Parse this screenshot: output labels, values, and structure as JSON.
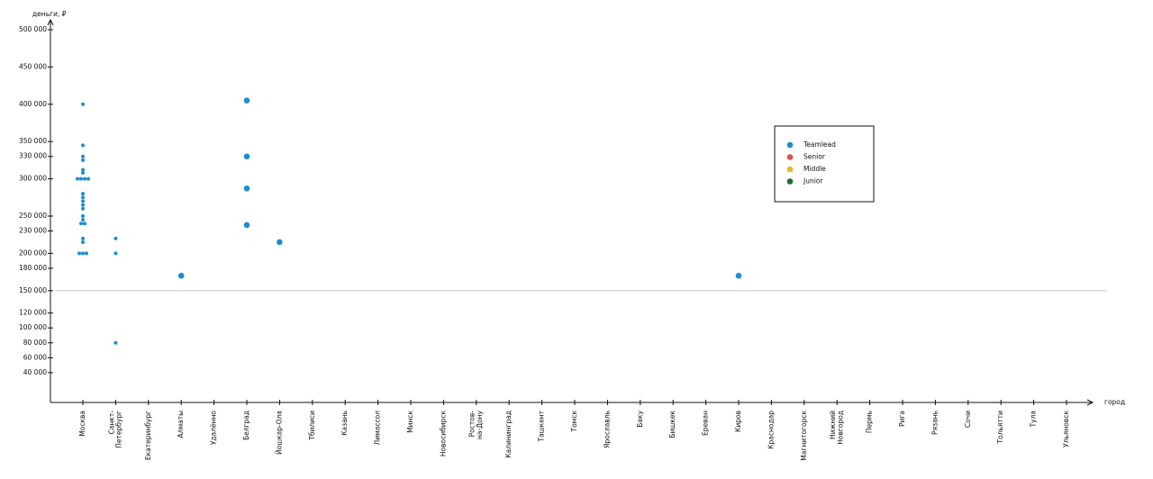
{
  "chart_data": {
    "type": "scatter",
    "y_label": "деньги, ₽",
    "x_label": "город",
    "categories": [
      "Москва",
      "Санкт-\nПетербург",
      "Екатеринбург",
      "Алматы",
      "Удалённо",
      "Белград",
      "Йошкар-Ола",
      "Тбилиси",
      "Казань",
      "Лимассол",
      "Минск",
      "Новосибирск",
      "Ростов-\nна-Дону",
      "Калининград",
      "Ташкент",
      "Томск",
      "Ярославль",
      "Баку",
      "Бишкек",
      "Ереван",
      "Киров",
      "Краснодар",
      "Магнитогорск",
      "Нижний\nНовгород",
      "Пермь",
      "Рига",
      "Рязань",
      "Сочи",
      "Тольятти",
      "Тула",
      "Ульяновск"
    ],
    "ylim": [
      0,
      510000
    ],
    "yticks": [
      {
        "value": 40000,
        "label": "40 000"
      },
      {
        "value": 60000,
        "label": "60 000"
      },
      {
        "value": 80000,
        "label": "80 000"
      },
      {
        "value": 100000,
        "label": "100 000"
      },
      {
        "value": 120000,
        "label": "120 000"
      },
      {
        "value": 150000,
        "label": "150 000"
      },
      {
        "value": 180000,
        "label": "180 000"
      },
      {
        "value": 200000,
        "label": "200 000"
      },
      {
        "value": 230000,
        "label": "230 000"
      },
      {
        "value": 250000,
        "label": "250 000"
      },
      {
        "value": 300000,
        "label": "300 000"
      },
      {
        "value": 330000,
        "label": "330 000"
      },
      {
        "value": 350000,
        "label": "350 000"
      },
      {
        "value": 400000,
        "label": "400 000"
      },
      {
        "value": 450000,
        "label": "450 000"
      },
      {
        "value": 500000,
        "label": "500 000"
      }
    ],
    "reference_line": 150000,
    "series": [
      {
        "name": "Teamlead",
        "color": "#1f8ccc",
        "x": [
          "Москва",
          "Москва",
          "Москва",
          "Москва",
          "Москва",
          "Москва",
          "Москва",
          "Москва",
          "Москва",
          "Москва",
          "Москва",
          "Москва",
          "Москва",
          "Москва",
          "Москва",
          "Москва",
          "Москва",
          "Москва",
          "Москва",
          "Москва",
          "Москва",
          "Москва",
          "Москва",
          "Москва",
          "Санкт-\nПетербург",
          "Санкт-\nПетербург",
          "Санкт-\nПетербург",
          "Алматы",
          "Белград",
          "Белград",
          "Белград",
          "Белград",
          "Йошкар-Ола",
          "Киров"
        ],
        "values": [
          400000,
          345000,
          330000,
          325000,
          312000,
          308000,
          300000,
          300000,
          300000,
          300000,
          280000,
          275000,
          270000,
          265000,
          260000,
          250000,
          245000,
          240000,
          240000,
          220000,
          215000,
          200000,
          200000,
          200000,
          220000,
          200000,
          80000,
          170000,
          405000,
          330000,
          287000,
          238000,
          215000,
          170000
        ]
      },
      {
        "name": "Senior",
        "color": "#e0524f",
        "x": [],
        "values": []
      },
      {
        "name": "Middle",
        "color": "#f0b323",
        "x": [],
        "values": []
      },
      {
        "name": "Junior",
        "color": "#1e6b2e",
        "x": [],
        "values": []
      }
    ]
  }
}
